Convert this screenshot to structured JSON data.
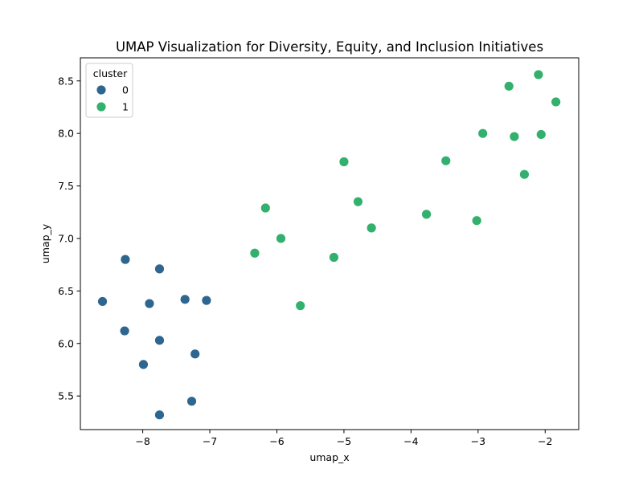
{
  "chart_data": {
    "type": "scatter",
    "title": "UMAP Visualization for Diversity, Equity, and Inclusion Initiatives",
    "xlabel": "umap_x",
    "ylabel": "umap_y",
    "xlim": [
      -8.93,
      -1.5
    ],
    "ylim": [
      5.18,
      8.72
    ],
    "xticks": [
      -8,
      -7,
      -6,
      -5,
      -4,
      -3,
      -2
    ],
    "xtick_labels": [
      "−8",
      "−7",
      "−6",
      "−5",
      "−4",
      "−3",
      "−2"
    ],
    "yticks": [
      5.5,
      6.0,
      6.5,
      7.0,
      7.5,
      8.0,
      8.5
    ],
    "ytick_labels": [
      "5.5",
      "6.0",
      "6.5",
      "7.0",
      "7.5",
      "8.0",
      "8.5"
    ],
    "grid": false,
    "legend": {
      "title": "cluster",
      "placement": "top-left"
    },
    "series": [
      {
        "name": "0",
        "color": "#2f6690",
        "x": [
          -8.6,
          -8.26,
          -7.75,
          -7.9,
          -7.37,
          -7.05,
          -8.27,
          -7.75,
          -7.22,
          -7.99,
          -7.27,
          -7.75
        ],
        "y": [
          6.4,
          6.8,
          6.71,
          6.38,
          6.42,
          6.41,
          6.12,
          6.03,
          5.9,
          5.8,
          5.45,
          5.32
        ]
      },
      {
        "name": "1",
        "color": "#33b06e",
        "x": [
          -2.1,
          -2.54,
          -1.84,
          -2.93,
          -2.46,
          -2.06,
          -2.31,
          -3.48,
          -5.0,
          -4.79,
          -6.17,
          -4.59,
          -3.77,
          -3.02,
          -5.94,
          -6.33,
          -5.15,
          -5.65
        ],
        "y": [
          8.56,
          8.45,
          8.3,
          8.0,
          7.97,
          7.99,
          7.61,
          7.74,
          7.73,
          7.35,
          7.29,
          7.1,
          7.23,
          7.17,
          7.0,
          6.86,
          6.82,
          6.36
        ]
      }
    ]
  }
}
